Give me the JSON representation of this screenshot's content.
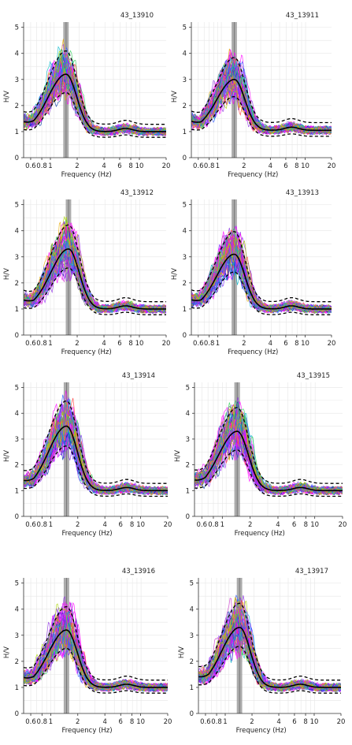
{
  "chart_data": [
    {
      "type": "line",
      "title": "43_13910",
      "xlabel": "Frequency (Hz)",
      "ylabel": "H/V",
      "xscale": "log",
      "xlim": [
        0.5,
        20
      ],
      "ylim": [
        0,
        5.2
      ],
      "peak_freq": 1.5,
      "peak_hv": 3.2,
      "base_hv": 1.0
    },
    {
      "type": "line",
      "title": "43_13911",
      "xlabel": "Frequency (Hz)",
      "ylabel": "H/V",
      "xscale": "log",
      "xlim": [
        0.5,
        20
      ],
      "ylim": [
        0,
        5.2
      ],
      "peak_freq": 1.55,
      "peak_hv": 3.0,
      "base_hv": 1.05
    },
    {
      "type": "line",
      "title": "43_13912",
      "xlabel": "Frequency (Hz)",
      "ylabel": "H/V",
      "xscale": "log",
      "xlim": [
        0.5,
        20
      ],
      "ylim": [
        0,
        5.2
      ],
      "peak_freq": 1.6,
      "peak_hv": 3.3,
      "base_hv": 1.0
    },
    {
      "type": "line",
      "title": "43_13913",
      "xlabel": "Frequency (Hz)",
      "ylabel": "H/V",
      "xscale": "log",
      "xlim": [
        0.5,
        20
      ],
      "ylim": [
        0,
        5.2
      ],
      "peak_freq": 1.55,
      "peak_hv": 3.1,
      "base_hv": 1.0
    },
    {
      "type": "line",
      "title": "43_13914",
      "xlabel": "Frequency (Hz)",
      "ylabel": "H/V",
      "xscale": "log",
      "xlim": [
        0.5,
        20
      ],
      "ylim": [
        0,
        5.2
      ],
      "peak_freq": 1.5,
      "peak_hv": 3.5,
      "base_hv": 1.0
    },
    {
      "type": "line",
      "title": "43_13915",
      "xlabel": "Frequency (Hz)",
      "ylabel": "H/V",
      "xscale": "log",
      "xlim": [
        0.5,
        20
      ],
      "ylim": [
        0,
        5.2
      ],
      "peak_freq": 1.45,
      "peak_hv": 3.3,
      "base_hv": 1.0
    },
    {
      "type": "line",
      "title": "43_13916",
      "xlabel": "Frequency (Hz)",
      "ylabel": "H/V",
      "xscale": "log",
      "xlim": [
        0.5,
        20
      ],
      "ylim": [
        0,
        5.2
      ],
      "peak_freq": 1.5,
      "peak_hv": 3.2,
      "base_hv": 1.0
    },
    {
      "type": "line",
      "title": "43_13917",
      "xlabel": "Frequency (Hz)",
      "ylabel": "H/V",
      "xscale": "log",
      "xlim": [
        0.5,
        20
      ],
      "ylim": [
        0,
        5.2
      ],
      "peak_freq": 1.45,
      "peak_hv": 3.3,
      "base_hv": 1.0
    }
  ],
  "shared_axes": {
    "x_ticks": [
      {
        "v": 0.6,
        "label": "0.6"
      },
      {
        "v": 0.8,
        "label": "0.8"
      },
      {
        "v": 1,
        "label": "1"
      },
      {
        "v": 2,
        "label": "2"
      },
      {
        "v": 4,
        "label": "4"
      },
      {
        "v": 6,
        "label": "6"
      },
      {
        "v": 8,
        "label": "8"
      },
      {
        "v": 10,
        "label": "10"
      },
      {
        "v": 20,
        "label": "20"
      }
    ],
    "y_ticks": [
      0,
      1,
      2,
      3,
      4,
      5
    ]
  },
  "colors": {
    "mean": "#000000",
    "std": "#000000",
    "band": "#9e9e9e",
    "grid": "#e6e6e6",
    "windows": [
      "#ff00ff",
      "#7b2cff",
      "#2e5bff",
      "#00b7c9",
      "#2fd05a",
      "#a8d400",
      "#e6a800",
      "#ff3b3b",
      "#0038a8",
      "#7a7a7a",
      "#cc33cc",
      "#9933ff"
    ]
  }
}
